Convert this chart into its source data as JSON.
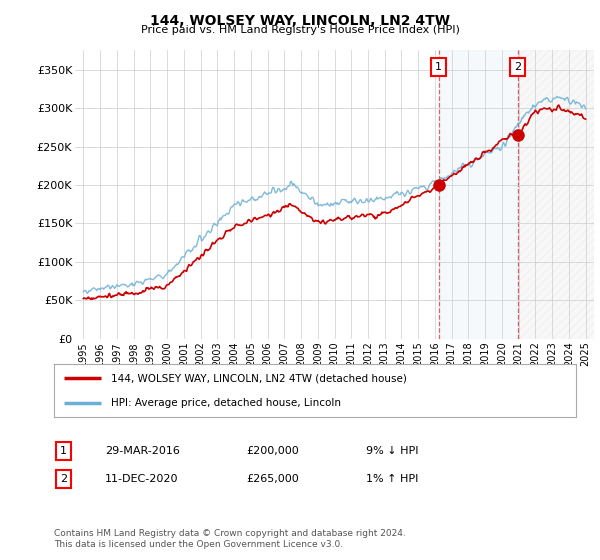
{
  "title": "144, WOLSEY WAY, LINCOLN, LN2 4TW",
  "subtitle": "Price paid vs. HM Land Registry's House Price Index (HPI)",
  "ylabel_ticks": [
    "£0",
    "£50K",
    "£100K",
    "£150K",
    "£200K",
    "£250K",
    "£300K",
    "£350K"
  ],
  "ylim": [
    0,
    370000
  ],
  "xlim_start": 1994.5,
  "xlim_end": 2025.5,
  "hpi_color": "#6baed6",
  "hpi_fill_color": "#c6dbef",
  "price_color": "#cc0000",
  "vline_color": "#cc0000",
  "marker1_date": 2016.23,
  "marker1_price": 200000,
  "marker2_date": 2020.95,
  "marker2_price": 265000,
  "legend_line1": "144, WOLSEY WAY, LINCOLN, LN2 4TW (detached house)",
  "legend_line2": "HPI: Average price, detached house, Lincoln",
  "table_row1_num": "1",
  "table_row1_date": "29-MAR-2016",
  "table_row1_price": "£200,000",
  "table_row1_hpi": "9% ↓ HPI",
  "table_row2_num": "2",
  "table_row2_date": "11-DEC-2020",
  "table_row2_price": "£265,000",
  "table_row2_hpi": "1% ↑ HPI",
  "footer": "Contains HM Land Registry data © Crown copyright and database right 2024.\nThis data is licensed under the Open Government Licence v3.0.",
  "background_color": "#ffffff",
  "grid_color": "#cccccc"
}
